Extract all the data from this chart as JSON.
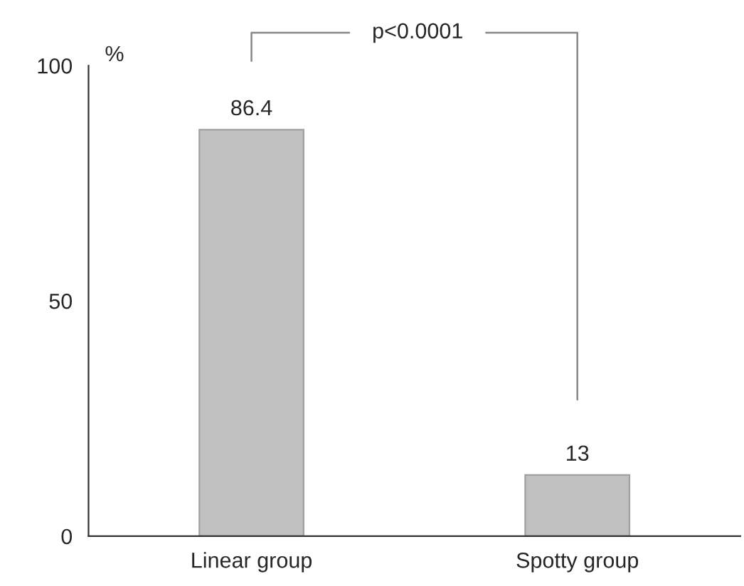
{
  "chart_data": {
    "type": "bar",
    "ylabel": "%",
    "categories": [
      "Linear group",
      "Spotty group"
    ],
    "values": [
      86.4,
      13
    ],
    "color": "#c0c0c0",
    "ylim": [
      0,
      100
    ],
    "yticks": [
      0,
      50,
      100
    ],
    "data_labels": true,
    "grid": false,
    "legend": false,
    "annotations": [
      "p<0.0001"
    ]
  }
}
